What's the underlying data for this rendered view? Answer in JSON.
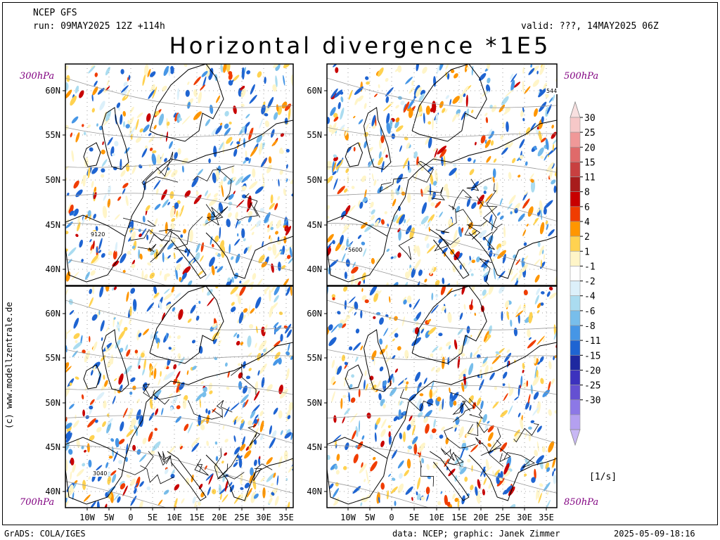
{
  "header": {
    "model": "NCEP GFS",
    "run": "run: 09MAY2025 12Z +114h",
    "valid": "valid: ???, 14MAY2025 06Z",
    "title": "Horizontal divergence *1E5"
  },
  "panels": [
    {
      "level": "300hPa",
      "contour_label": "9120"
    },
    {
      "level": "500hPa",
      "contour_label": "5600",
      "contour_label_2": "544"
    },
    {
      "level": "700hPa",
      "contour_label": "3040"
    },
    {
      "level": "850hPa"
    }
  ],
  "axes": {
    "lat_labels": [
      "60N",
      "55N",
      "50N",
      "45N",
      "40N"
    ],
    "lon_labels": [
      "10W",
      "5W",
      "0",
      "5E",
      "10E",
      "15E",
      "20E",
      "25E",
      "30E",
      "35E"
    ]
  },
  "colorbar": {
    "labels": [
      "30",
      "25",
      "20",
      "15",
      "11",
      "8",
      "6",
      "4",
      "2",
      "1",
      "-1",
      "-2",
      "-4",
      "-6",
      "-8",
      "-11",
      "-15",
      "-20",
      "-25",
      "-30"
    ],
    "colors": [
      "#f6c8c8",
      "#f09898",
      "#e06a6a",
      "#c84040",
      "#a81c1c",
      "#c80000",
      "#f03c00",
      "#ff9600",
      "#ffd250",
      "#fff5c8",
      "#ffffff",
      "#dcf0fa",
      "#aadcf0",
      "#78beeb",
      "#4696e6",
      "#1e64d2",
      "#1e28a0",
      "#3c32be",
      "#6450d2",
      "#8c78e6",
      "#b4a0f0"
    ],
    "top_arrow_color": "#f8e0e0",
    "bottom_arrow_color": "#c8b8f4",
    "units": "[1/s]"
  },
  "credit": "(c) www.modellzentrale.de",
  "footer": {
    "software": "GrADS: COLA/IGES",
    "data": "data: NCEP; graphic: Janek Zimmer",
    "timestamp": "2025-05-09-18:16"
  }
}
